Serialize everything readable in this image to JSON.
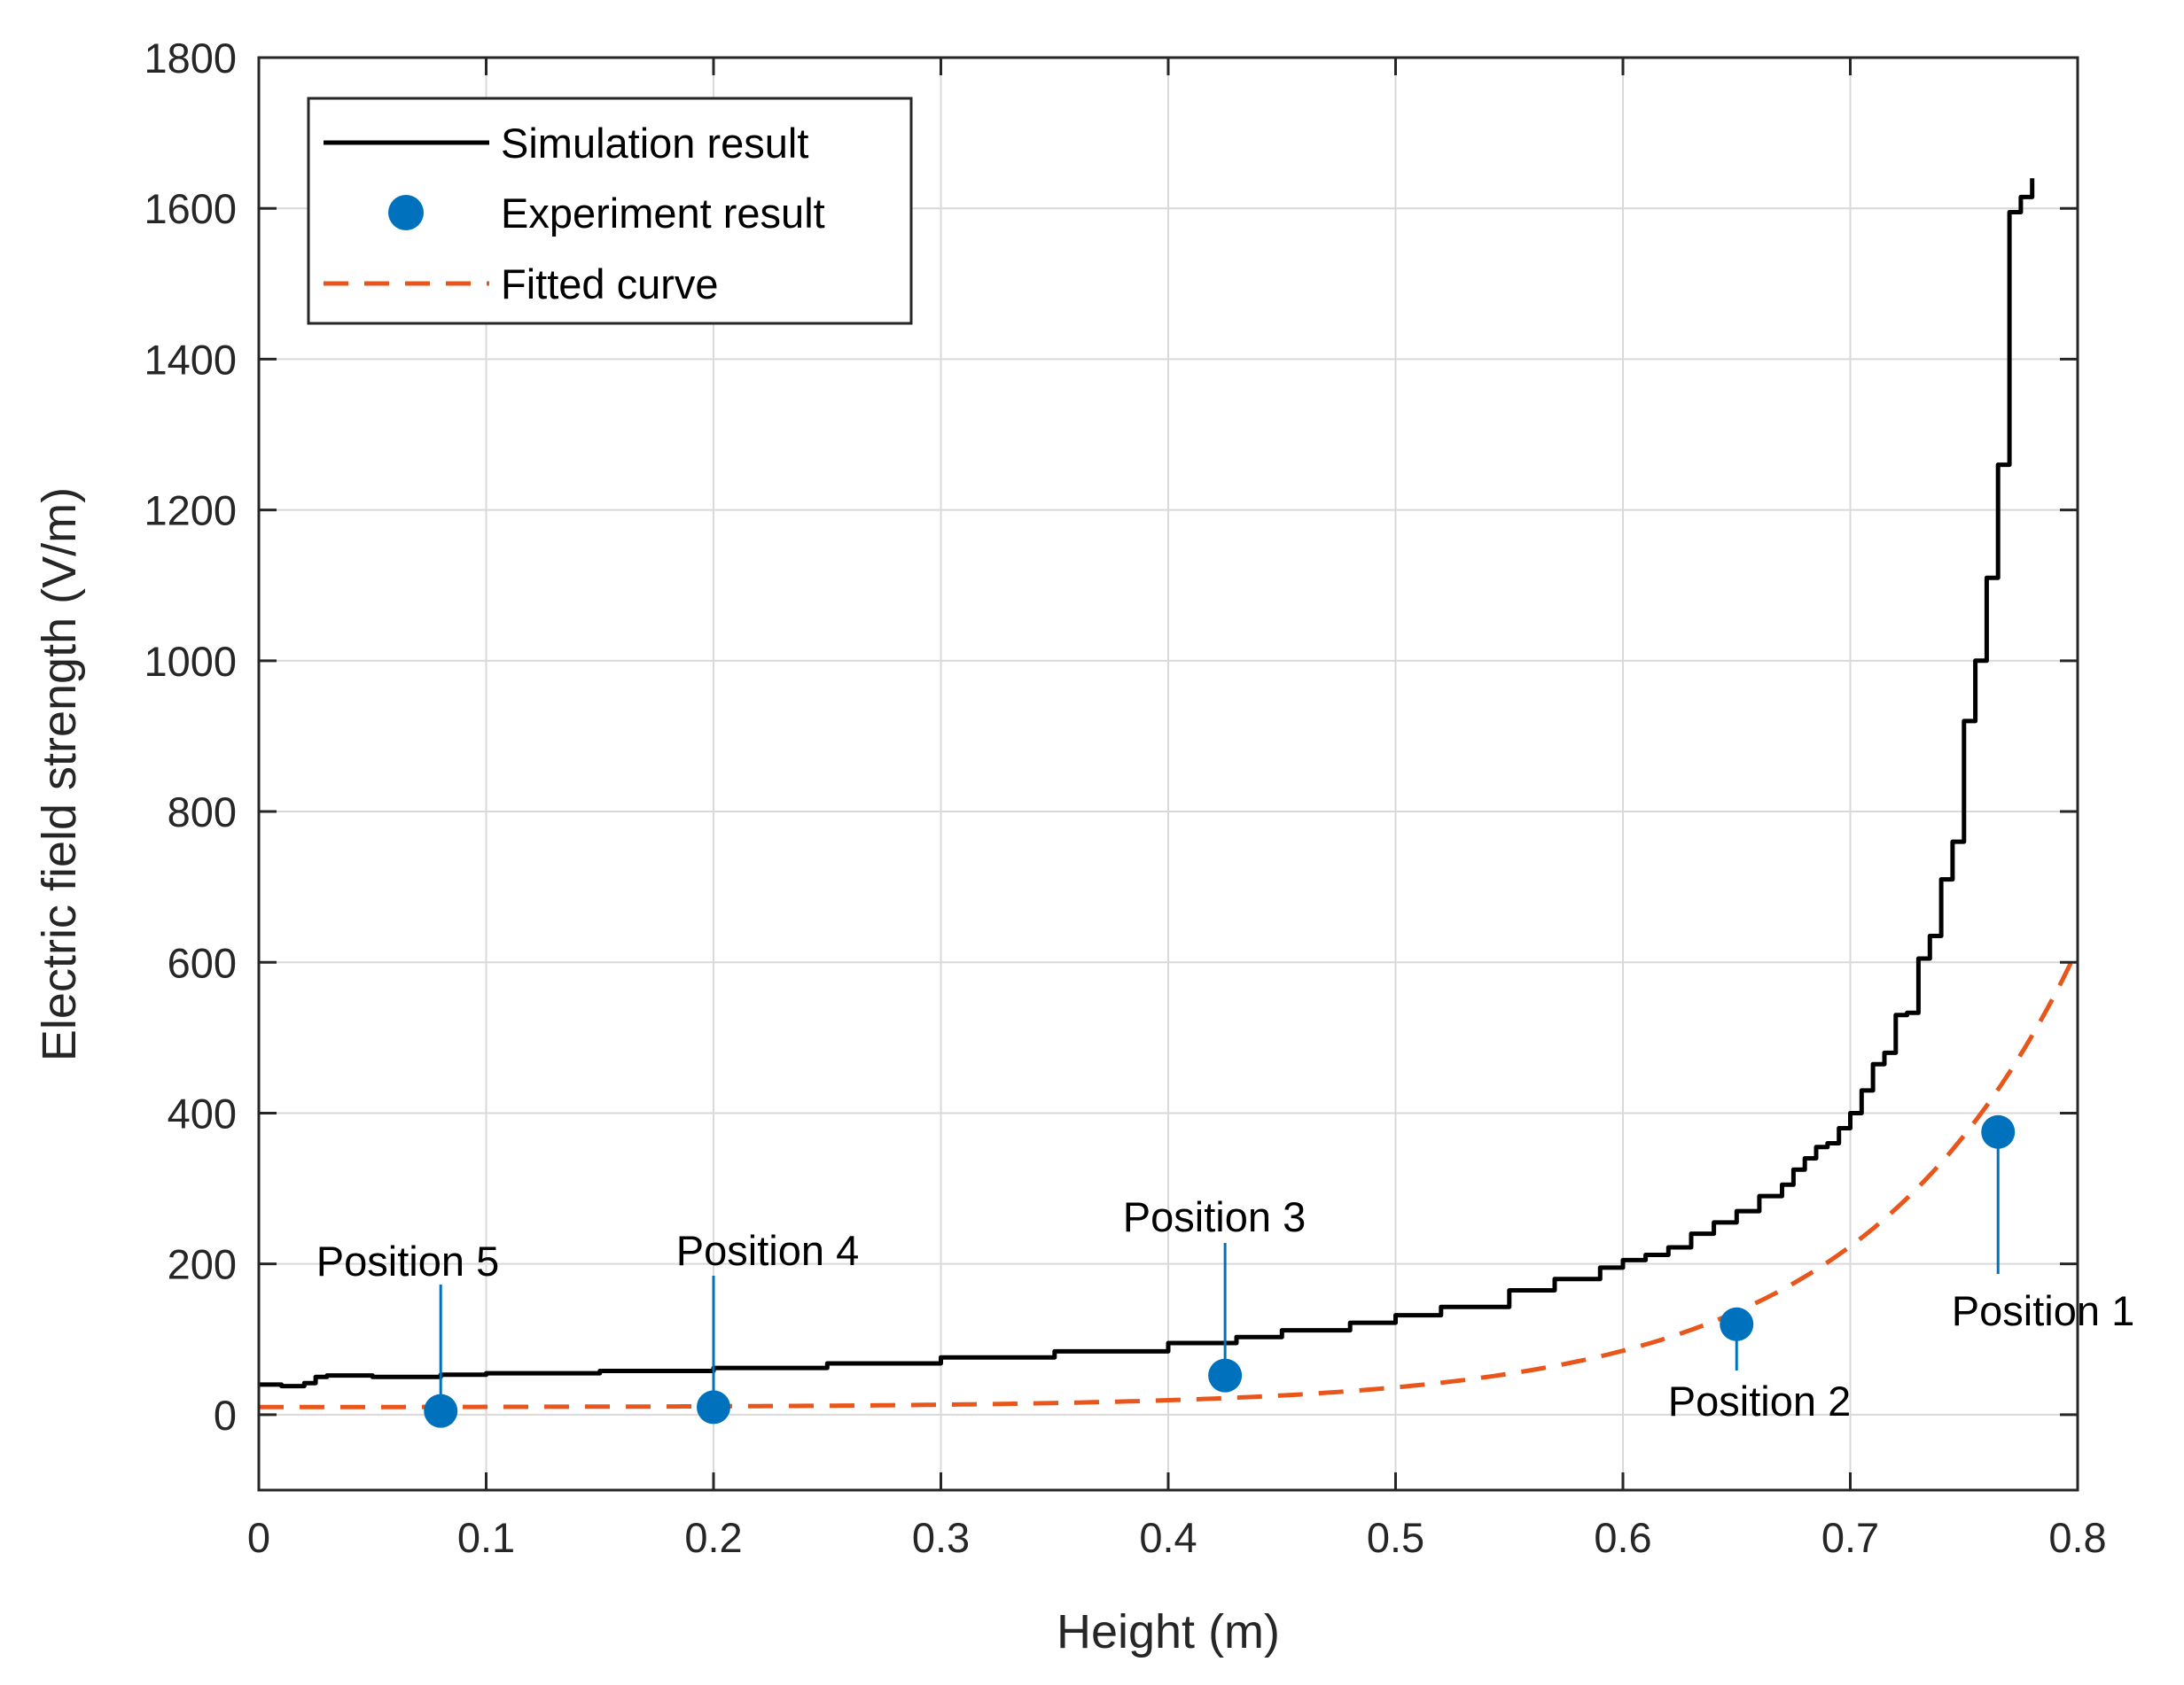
{
  "chart_data": {
    "type": "line",
    "title": "",
    "xlabel": "Height (m)",
    "ylabel": "Electric field strength (V/m)",
    "xlim": [
      0,
      0.8
    ],
    "ylim": [
      -100,
      1800
    ],
    "xticks": [
      0,
      0.1,
      0.2,
      0.3,
      0.4,
      0.5,
      0.6,
      0.7,
      0.8
    ],
    "xtick_labels": [
      "0",
      "0.1",
      "0.2",
      "0.3",
      "0.4",
      "0.5",
      "0.6",
      "0.7",
      "0.8"
    ],
    "yticks": [
      0,
      200,
      400,
      600,
      800,
      1000,
      1200,
      1400,
      1600,
      1800
    ],
    "ytick_labels": [
      "0",
      "200",
      "400",
      "600",
      "800",
      "1000",
      "1200",
      "1400",
      "1600",
      "1800"
    ],
    "grid": true,
    "legend_position": "top-left",
    "colors": {
      "simulation": "#000000",
      "experiment": "#0072BD",
      "fitted": "#E8561C",
      "grid": "#d9d9d9",
      "axis": "#262626"
    },
    "series": [
      {
        "name": "Simulation result",
        "kind": "line",
        "x": [
          0,
          0.01,
          0.02,
          0.025,
          0.03,
          0.05,
          0.08,
          0.1,
          0.15,
          0.2,
          0.25,
          0.3,
          0.35,
          0.4,
          0.43,
          0.45,
          0.48,
          0.5,
          0.52,
          0.55,
          0.57,
          0.59,
          0.6,
          0.61,
          0.62,
          0.63,
          0.64,
          0.65,
          0.66,
          0.67,
          0.675,
          0.68,
          0.685,
          0.69,
          0.695,
          0.7,
          0.705,
          0.71,
          0.715,
          0.72,
          0.725,
          0.73,
          0.735,
          0.74,
          0.745,
          0.75,
          0.755,
          0.76,
          0.765,
          0.77,
          0.775,
          0.78
        ],
        "y": [
          40,
          38,
          42,
          50,
          52,
          50,
          53,
          55,
          58,
          62,
          68,
          76,
          84,
          95,
          103,
          112,
          122,
          132,
          143,
          165,
          180,
          195,
          205,
          212,
          222,
          240,
          255,
          270,
          290,
          305,
          325,
          340,
          355,
          360,
          380,
          400,
          430,
          465,
          480,
          530,
          533,
          605,
          635,
          710,
          760,
          920,
          1000,
          1110,
          1260,
          1595,
          1615,
          1640
        ]
      },
      {
        "name": "Experiment result",
        "kind": "scatter",
        "x": [
          0.765,
          0.65,
          0.425,
          0.2,
          0.08
        ],
        "y": [
          375,
          120,
          52,
          10,
          5
        ]
      },
      {
        "name": "Fitted curve",
        "kind": "line-dashed",
        "model": "y = 10 + 0.14*exp(10.47*x)",
        "x_range": [
          0,
          0.8
        ]
      }
    ],
    "annotations": [
      {
        "label": "Position 1",
        "x": 0.765,
        "y": 375,
        "text_side": "below"
      },
      {
        "label": "Position 2",
        "x": 0.65,
        "y": 120,
        "text_side": "below"
      },
      {
        "label": "Position 3",
        "x": 0.425,
        "y": 52,
        "text_side": "above"
      },
      {
        "label": "Position 4",
        "x": 0.2,
        "y": 10,
        "text_side": "above"
      },
      {
        "label": "Position 5",
        "x": 0.08,
        "y": 5,
        "text_side": "above"
      }
    ]
  }
}
